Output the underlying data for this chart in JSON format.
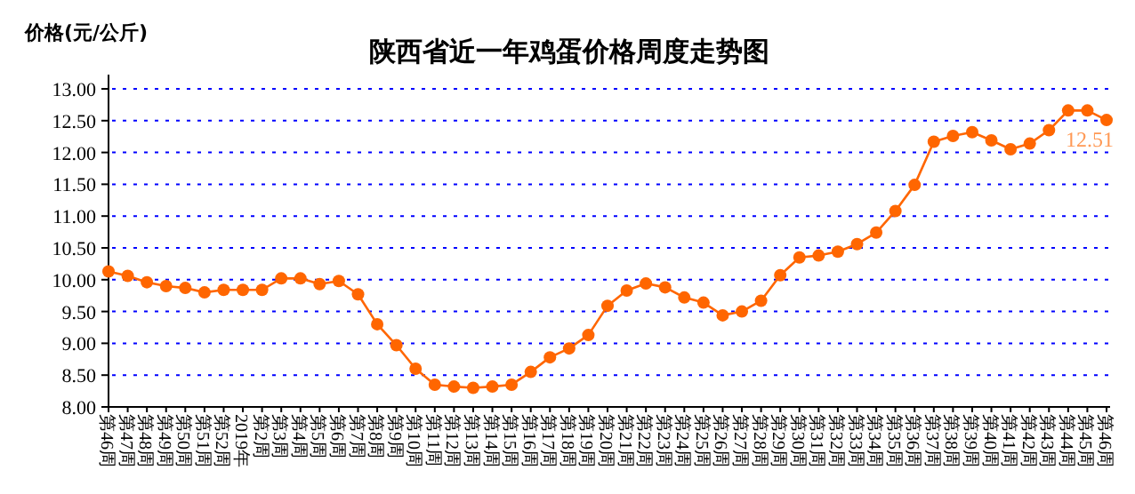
{
  "chart_data": {
    "type": "line",
    "title": "陕西省近一年鸡蛋价格周度走势图",
    "ylabel": "价格(元/公斤)",
    "categories": [
      "第46周",
      "第47周",
      "第48周",
      "第49周",
      "第50周",
      "第51周",
      "第52周",
      "2019年",
      "第2周",
      "第3周",
      "第4周",
      "第5周",
      "第6周",
      "第7周",
      "第8周",
      "第9周",
      "第10周",
      "第11周",
      "第12周",
      "第13周",
      "第14周",
      "第15周",
      "第16周",
      "第17周",
      "第18周",
      "第19周",
      "第20周",
      "第21周",
      "第22周",
      "第23周",
      "第24周",
      "第25周",
      "第26周",
      "第27周",
      "第28周",
      "第29周",
      "第30周",
      "第31周",
      "第32周",
      "第33周",
      "第34周",
      "第35周",
      "第36周",
      "第37周",
      "第38周",
      "第39周",
      "第40周",
      "第41周",
      "第42周",
      "第43周",
      "第44周",
      "第45周",
      "第46周"
    ],
    "series": [
      {
        "color": "#ff6600",
        "values": [
          10.13,
          10.06,
          9.96,
          9.9,
          9.87,
          9.8,
          9.84,
          9.84,
          9.84,
          10.02,
          10.02,
          9.93,
          9.98,
          9.77,
          9.3,
          8.97,
          8.6,
          8.35,
          8.32,
          8.3,
          8.32,
          8.35,
          8.55,
          8.78,
          8.92,
          9.13,
          9.59,
          9.83,
          9.94,
          9.88,
          9.72,
          9.64,
          9.44,
          9.5,
          9.67,
          10.07,
          10.35,
          10.38,
          10.44,
          10.56,
          10.74,
          11.08,
          11.49,
          12.17,
          12.26,
          12.32,
          12.19,
          12.05,
          12.14,
          12.35,
          12.66,
          12.66,
          12.51
        ],
        "value_labels": [
          null,
          null,
          null,
          null,
          null,
          null,
          null,
          null,
          null,
          null,
          null,
          null,
          null,
          null,
          null,
          null,
          null,
          null,
          null,
          null,
          null,
          null,
          null,
          null,
          null,
          null,
          null,
          null,
          null,
          null,
          null,
          null,
          null,
          null,
          null,
          null,
          null,
          null,
          null,
          null,
          null,
          null,
          null,
          null,
          null,
          null,
          null,
          null,
          null,
          null,
          null,
          null,
          "12.51"
        ]
      }
    ],
    "ylim": [
      8,
      13
    ],
    "yticks": [
      {
        "value": 8,
        "label": "8.00"
      },
      {
        "value": 8.5,
        "label": "8.50"
      },
      {
        "value": 9,
        "label": "9.00"
      },
      {
        "value": 9.5,
        "label": "9.50"
      },
      {
        "value": 10,
        "label": "10.00"
      },
      {
        "value": 10.5,
        "label": "10.50"
      },
      {
        "value": 11,
        "label": "11.00"
      },
      {
        "value": 11.5,
        "label": "11.50"
      },
      {
        "value": 12,
        "label": "12.00"
      },
      {
        "value": 12.5,
        "label": "12.50"
      },
      {
        "value": 13,
        "label": "13.00"
      }
    ],
    "grid": "y",
    "marker": "circle",
    "line_style": "solid"
  }
}
